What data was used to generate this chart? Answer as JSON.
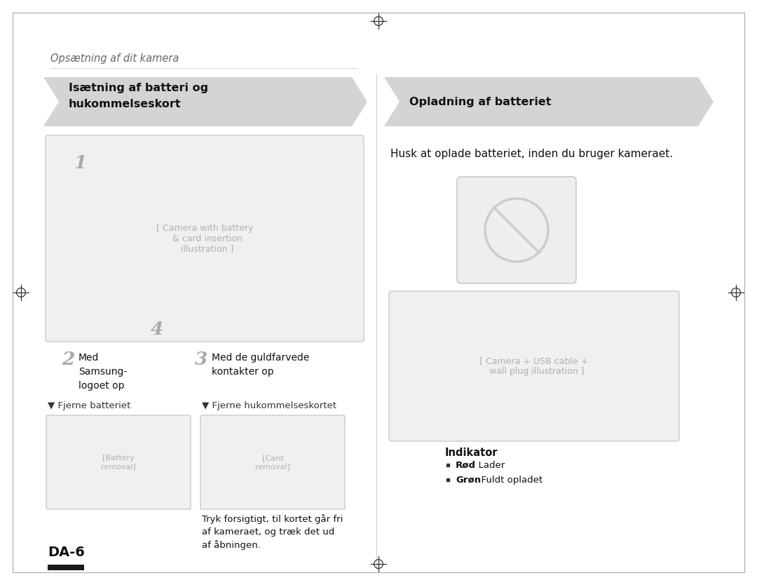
{
  "bg_color": "#ffffff",
  "top_label": "Opsætning af dit kamera",
  "section1_title_line1": "Isætning af batteri og",
  "section1_title_line2": "hukommelseskort",
  "section2_title": "Opladning af batteriet",
  "chevron_color": "#d4d4d4",
  "body_text_charge": "Husk at oplade batteriet, inden du bruger kameraet.",
  "step1_label": "1",
  "step2_label": "2",
  "step2_text_line1": "Med",
  "step2_text_line2": "Samsung-",
  "step2_text_line3": "logoet op",
  "step3_label": "3",
  "step3_text_line1": "Med de guldfarvede",
  "step3_text_line2": "kontakter op",
  "step4_label": "4",
  "remove_battery_label": "▼ Fjerne batteriet",
  "remove_card_label": "▼ Fjerne hukommelseskortet",
  "remove_card_text_line1": "Tryk forsigtigt, til kortet går fri",
  "remove_card_text_line2": "af kameraet, og træk det ud",
  "remove_card_text_line3": "af åbningen.",
  "page_label": "DA-6",
  "indicator_title": "Indikator",
  "indicator_red_bold": "Rød",
  "indicator_red_normal": ": Lader",
  "indicator_green_bold": "Grøn",
  "indicator_green_normal": ": Fuldt opladet",
  "divider_color": "#cccccc",
  "border_color": "#aaaaaa"
}
